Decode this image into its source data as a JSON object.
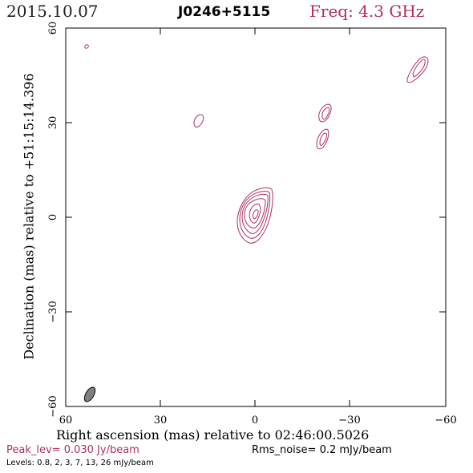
{
  "header": {
    "date": "2015.10.07",
    "source": "J0246+5115",
    "frequency": "Freq: 4.3 GHz"
  },
  "axes": {
    "xlabel": "Right ascension (mas) relative to 02:46:00.5026",
    "ylabel": "Declination (mas) relative to +51:15:14.396",
    "x_ticks": [
      "60",
      "30",
      "0",
      "−30",
      "−60"
    ],
    "y_ticks": [
      "60",
      "30",
      "0",
      "−30",
      "−60"
    ],
    "x_range": [
      60,
      -60
    ],
    "y_range": [
      -60,
      60
    ]
  },
  "footer": {
    "peak": "Peak_lev=  0.030 Jy/beam",
    "rms": "Rms_noise=  0.2 mJy/beam",
    "levels": "Levels: 0.8,   2,   3,   7,  13,  26 mJy/beam"
  },
  "colors": {
    "contour": "#b0305a",
    "beam": "#808080"
  }
}
